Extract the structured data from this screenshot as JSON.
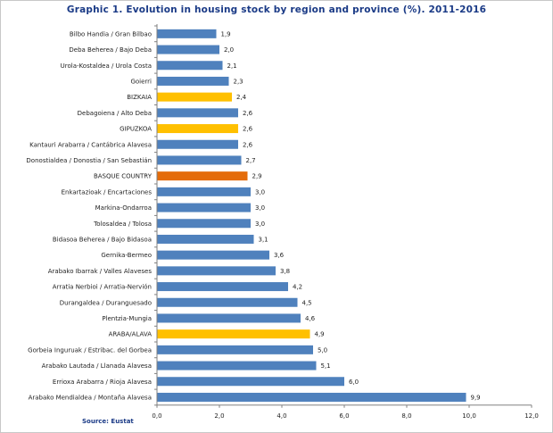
{
  "chart_data": {
    "type": "bar",
    "orientation": "horizontal",
    "title": "Graphic 1. Evolution in housing stock by region and province (%). 2011-2016",
    "source": "Source: Eustat",
    "xlim": [
      0,
      12
    ],
    "x_ticks": [
      "0,0",
      "2,0",
      "4,0",
      "6,0",
      "8,0",
      "10,0",
      "12,0"
    ],
    "grid": false,
    "legend": "none",
    "colors": {
      "region": "#4f81bd",
      "province": "#ffc000",
      "basque_country": "#e46c0a"
    },
    "categories": [
      "Bilbo Handia / Gran Bilbao",
      "Deba Beherea / Bajo Deba",
      "Urola-Kostaldea / Urola Costa",
      "Goierri",
      "BIZKAIA",
      "Debagoiena / Alto Deba",
      "GIPUZKOA",
      "Kantauri Arabarra / Cantábrica Alavesa",
      "Donostialdea / Donostia / San Sebastián",
      "BASQUE COUNTRY",
      "Enkartazioak / Encartaciones",
      "Markina-Ondarroa",
      "Tolosaldea / Tolosa",
      "Bidasoa Beherea / Bajo Bidasoa",
      "Gernika-Bermeo",
      "Arabako Ibarrak / Valles Alaveses",
      "Arratia Nerbioi / Arratia-Nervión",
      "Durangaldea / Duranguesado",
      "Plentzia-Mungia",
      "ARABA/ALAVA",
      "Gorbeia Inguruak / Estribac. del Gorbea",
      "Arabako Lautada / Llanada Alavesa",
      "Errioxa Arabarra / Rioja Alavesa",
      "Arabako Mendialdea / Montaña Alavesa"
    ],
    "values": [
      1.9,
      2.0,
      2.1,
      2.3,
      2.4,
      2.6,
      2.6,
      2.6,
      2.7,
      2.9,
      3.0,
      3.0,
      3.0,
      3.1,
      3.6,
      3.8,
      4.2,
      4.5,
      4.6,
      4.9,
      5.0,
      5.1,
      6.0,
      9.9
    ],
    "value_labels": [
      "1,9",
      "2,0",
      "2,1",
      "2,3",
      "2,4",
      "2,6",
      "2,6",
      "2,6",
      "2,7",
      "2,9",
      "3,0",
      "3,0",
      "3,0",
      "3,1",
      "3,6",
      "3,8",
      "4,2",
      "4,5",
      "4,6",
      "4,9",
      "5,0",
      "5,1",
      "6,0",
      "9,9"
    ],
    "bar_kind": [
      "region",
      "region",
      "region",
      "region",
      "province",
      "region",
      "province",
      "region",
      "region",
      "basque_country",
      "region",
      "region",
      "region",
      "region",
      "region",
      "region",
      "region",
      "region",
      "region",
      "province",
      "region",
      "region",
      "region",
      "region"
    ]
  }
}
